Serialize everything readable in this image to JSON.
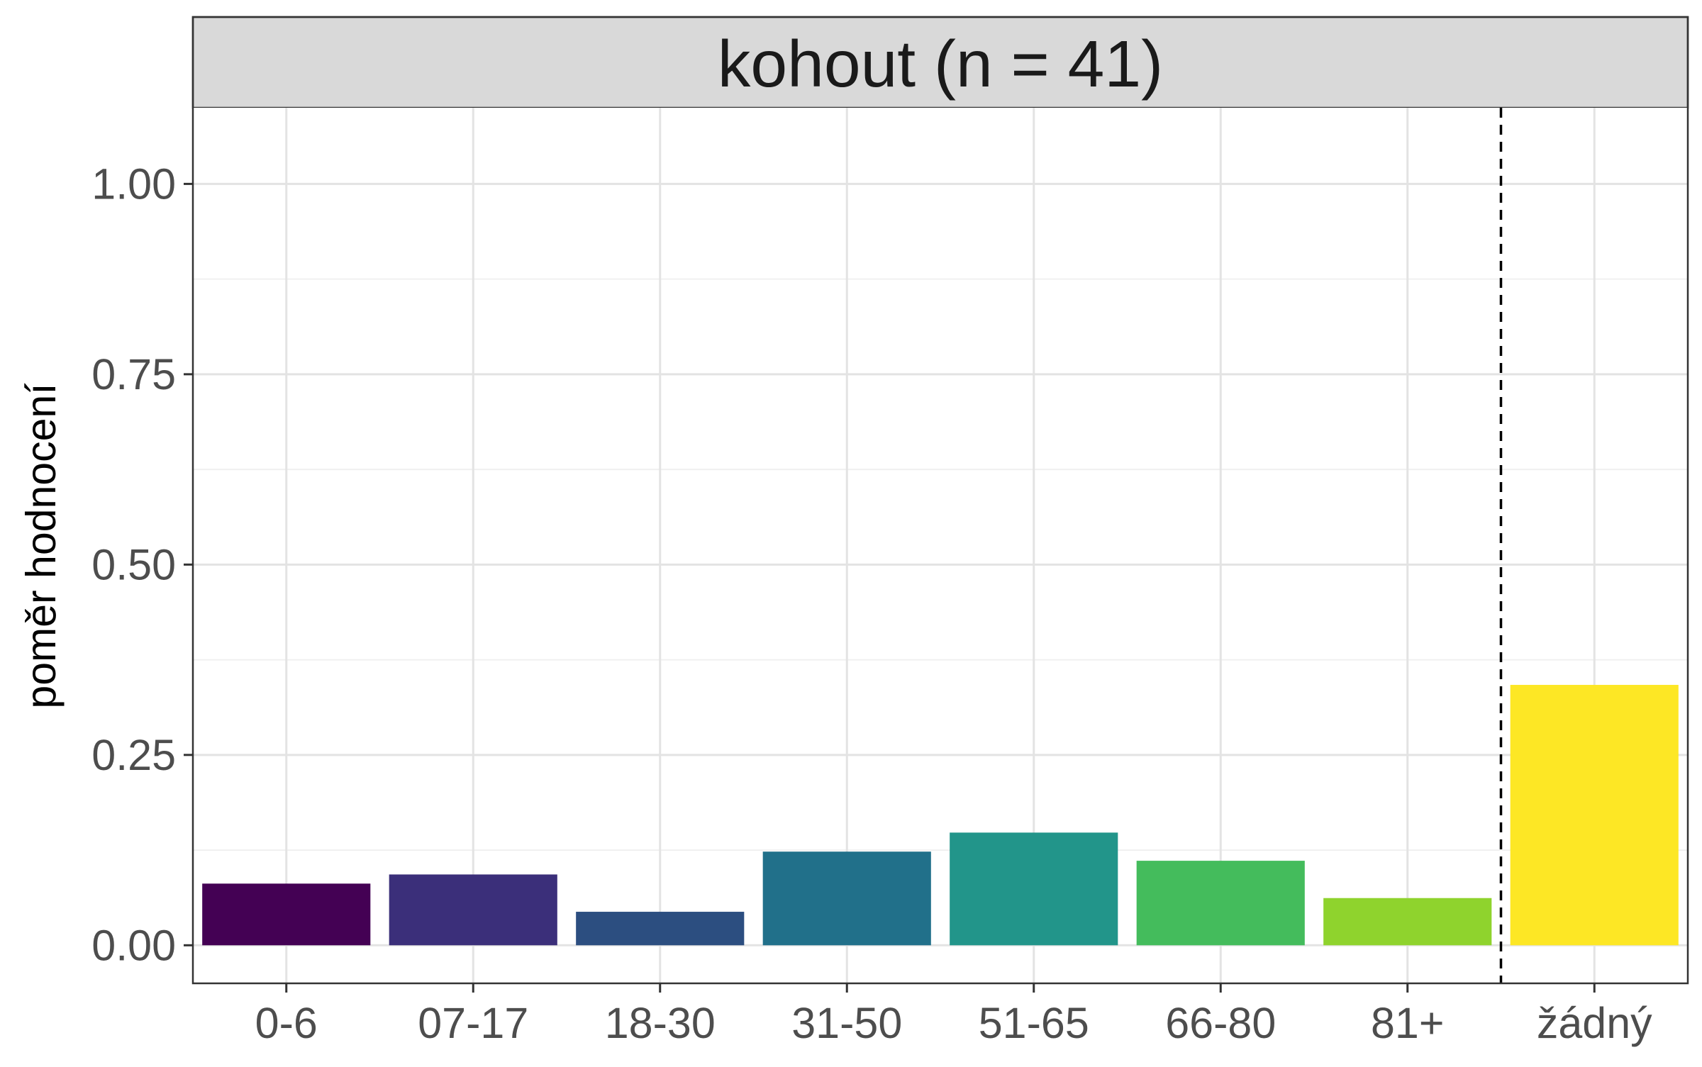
{
  "chart_data": {
    "type": "bar",
    "title": "kohout (n = 41)",
    "xlabel": "",
    "ylabel": "poměr hodnocení",
    "categories": [
      "0-6",
      "07-17",
      "18-30",
      "31-50",
      "51-65",
      "66-80",
      "81+",
      "žádný"
    ],
    "values": [
      0.081,
      0.093,
      0.044,
      0.123,
      0.148,
      0.111,
      0.062,
      0.342
    ],
    "ylim": [
      -0.05,
      1.1
    ],
    "yticks": [
      0.0,
      0.25,
      0.5,
      0.75,
      1.0
    ],
    "ytick_labels": [
      "0.00",
      "0.25",
      "0.50",
      "0.75",
      "1.00"
    ],
    "colors": [
      "#440154",
      "#3b2f7a",
      "#2c4e80",
      "#21708a",
      "#22958a",
      "#44bc5c",
      "#8fd32d",
      "#fde725"
    ],
    "reference_line": {
      "after_category": "81+",
      "style": "dashed",
      "color": "#000000"
    },
    "grid": true,
    "legend": "none"
  }
}
